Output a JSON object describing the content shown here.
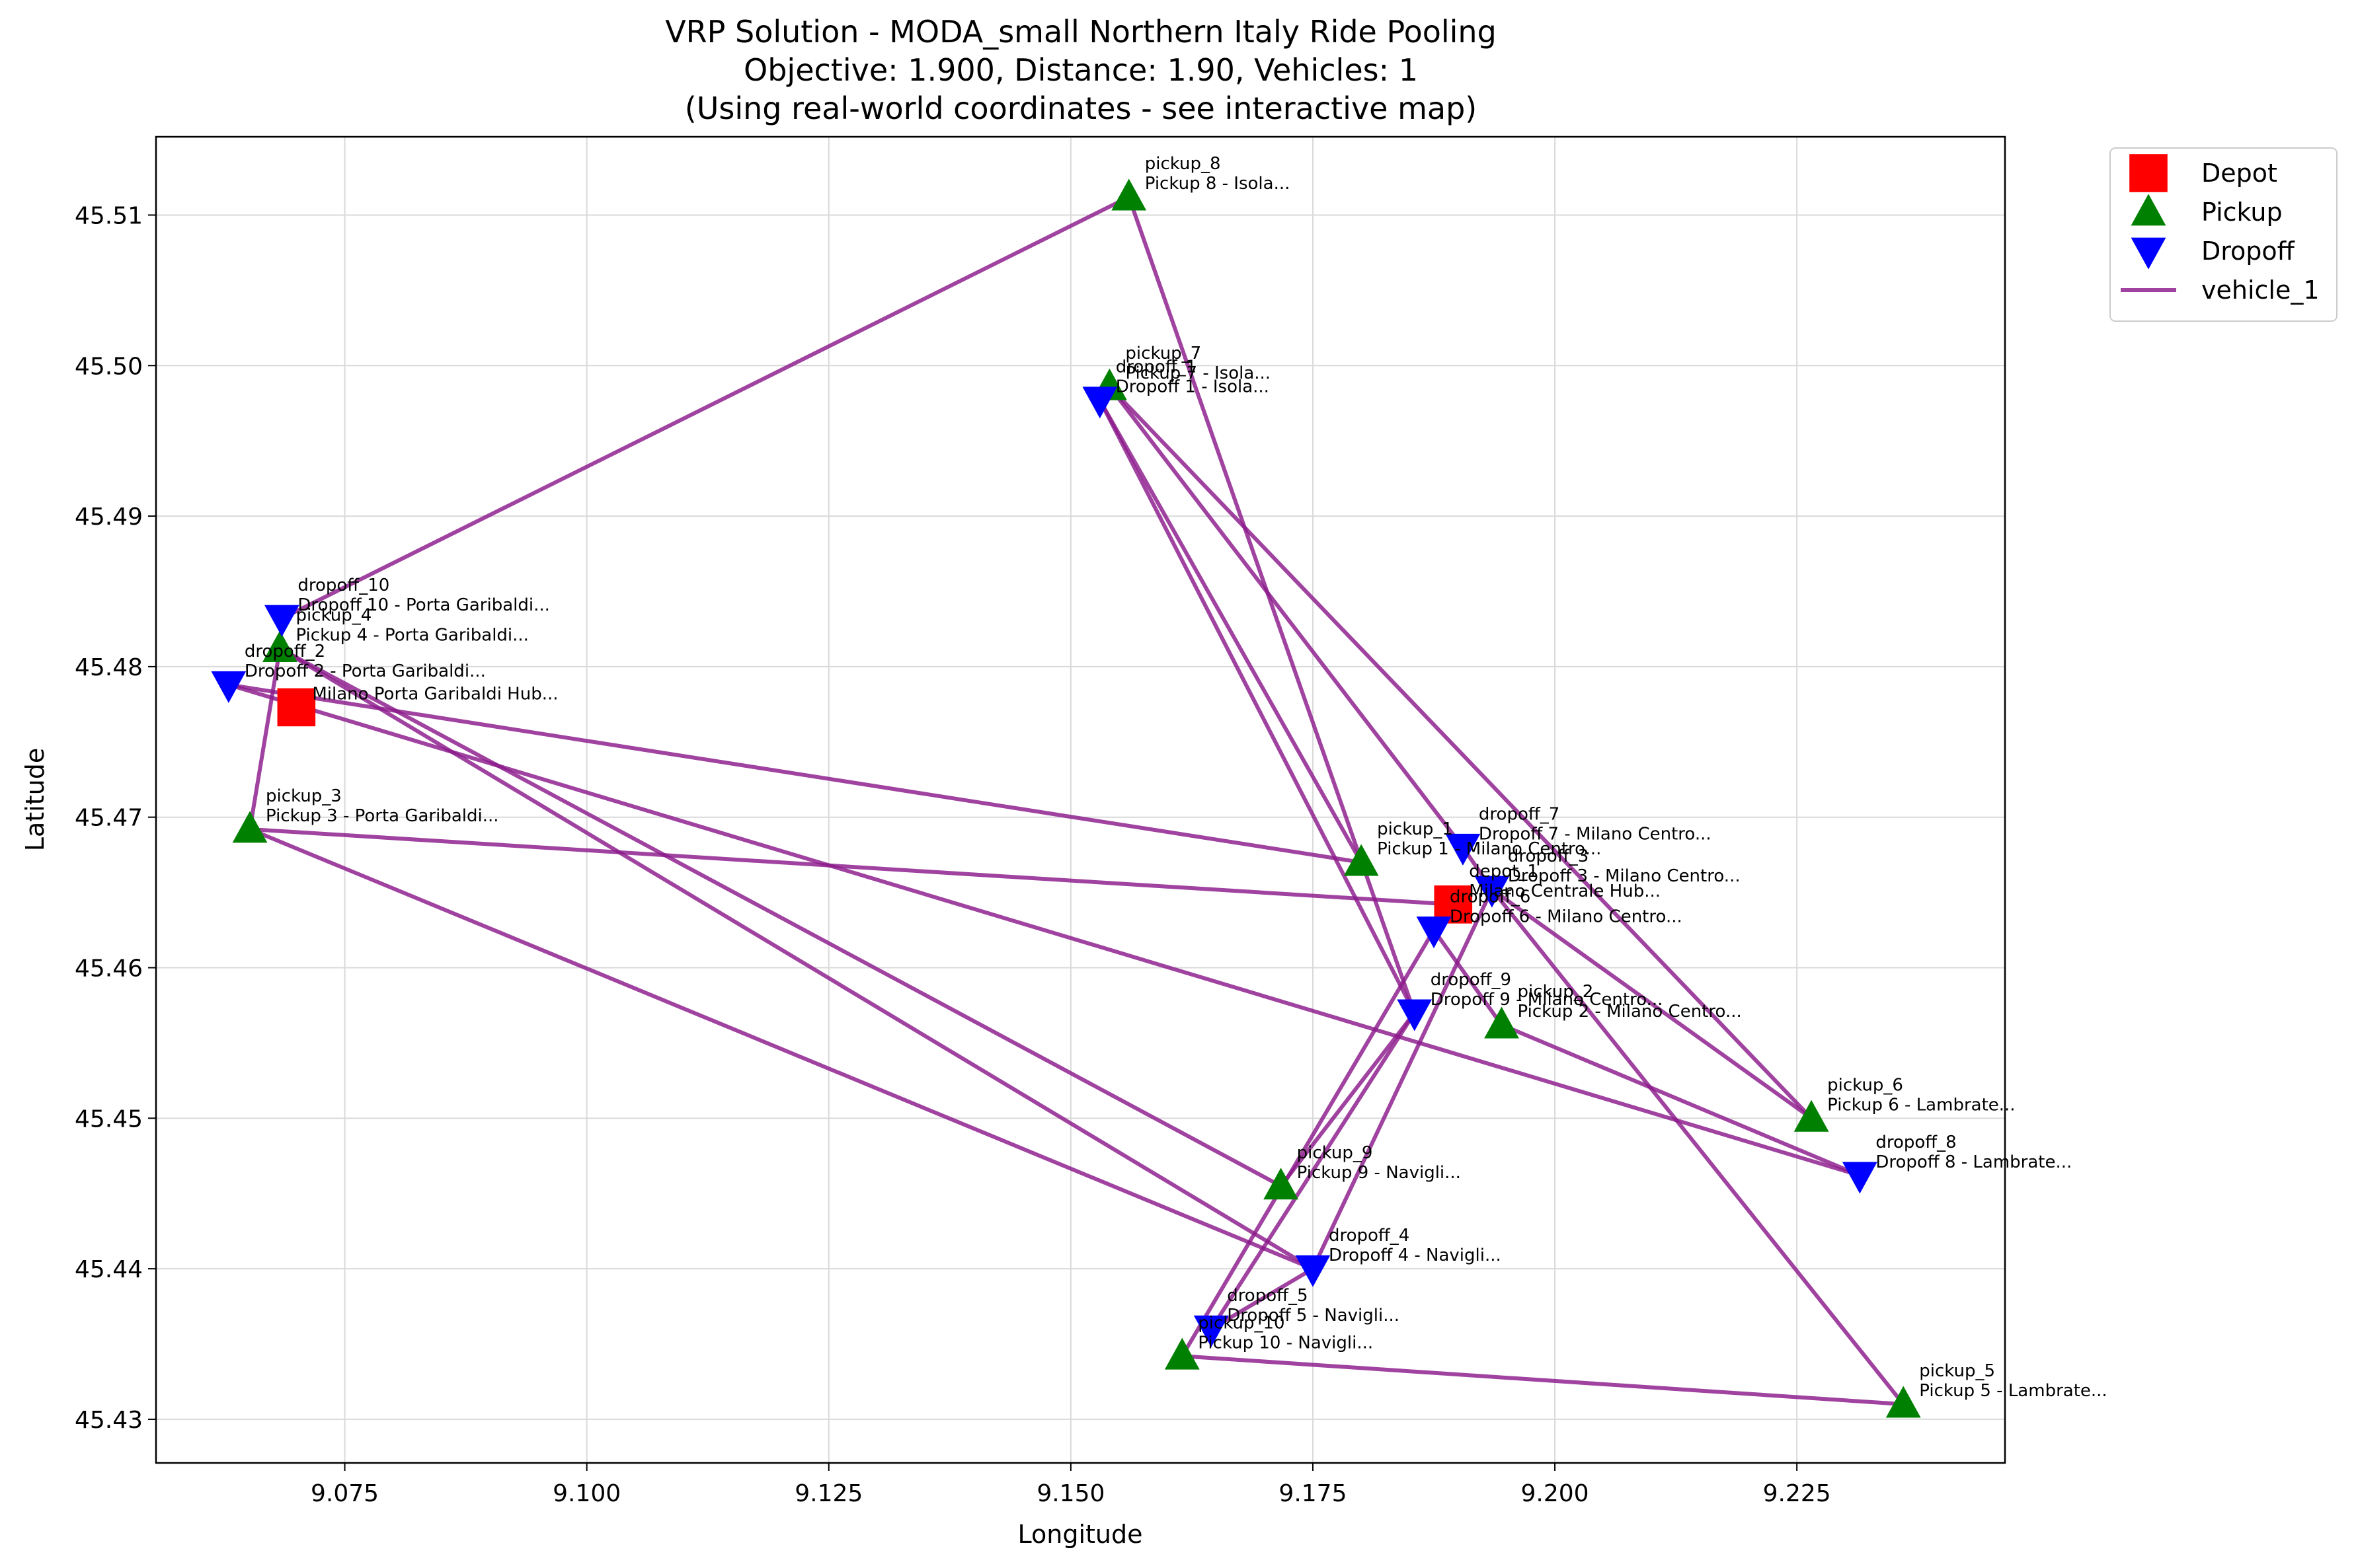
{
  "chart_data": {
    "type": "scatter",
    "title_lines": [
      "VRP Solution - MODA_small Northern Italy Ride Pooling",
      "Objective: 1.900, Distance: 1.90, Vehicles: 1",
      "(Using real-world coordinates - see interactive map)"
    ],
    "xlabel": "Longitude",
    "ylabel": "Latitude",
    "xlim": [
      9.0555,
      9.2465
    ],
    "ylim": [
      45.4271,
      45.5152
    ],
    "xticks": [
      "9.075",
      "9.100",
      "9.125",
      "9.150",
      "9.175",
      "9.200",
      "9.225"
    ],
    "yticks": [
      "45.43",
      "45.44",
      "45.45",
      "45.46",
      "45.47",
      "45.48",
      "45.49",
      "45.50",
      "45.51"
    ],
    "grid": true,
    "legend_position": "outside upper right",
    "legend": [
      {
        "label": "Depot",
        "marker": "square",
        "color": "#ff0000"
      },
      {
        "label": "Pickup",
        "marker": "triangle-up",
        "color": "#008000"
      },
      {
        "label": "Dropoff",
        "marker": "triangle-down",
        "color": "#0000ff"
      },
      {
        "label": "vehicle_1",
        "marker": "line",
        "color": "#8b1a8b"
      }
    ],
    "points": [
      {
        "id": "depot_1",
        "kind": "depot",
        "x": 9.07,
        "y": 45.4773,
        "name": "",
        "desc": "Milano Porta Garibaldi Hub..."
      },
      {
        "id": "depot_2",
        "kind": "depot",
        "x": 9.1895,
        "y": 45.4642,
        "name": "depot_1",
        "desc": "Milano Centrale Hub..."
      },
      {
        "id": "pickup_1",
        "kind": "pickup",
        "x": 9.18,
        "y": 45.467,
        "name": "pickup_1",
        "desc": "Pickup 1 - Milano Centro..."
      },
      {
        "id": "pickup_2",
        "kind": "pickup",
        "x": 9.1945,
        "y": 45.4562,
        "name": "pickup_2",
        "desc": "Pickup 2 - Milano Centro..."
      },
      {
        "id": "pickup_3",
        "kind": "pickup",
        "x": 9.0652,
        "y": 45.4692,
        "name": "pickup_3",
        "desc": "Pickup 3 - Porta Garibaldi..."
      },
      {
        "id": "pickup_4",
        "kind": "pickup",
        "x": 9.0683,
        "y": 45.4812,
        "name": "pickup_4",
        "desc": "Pickup 4 - Porta Garibaldi..."
      },
      {
        "id": "pickup_5",
        "kind": "pickup",
        "x": 9.236,
        "y": 45.431,
        "name": "pickup_5",
        "desc": "Pickup 5 - Lambrate..."
      },
      {
        "id": "pickup_6",
        "kind": "pickup",
        "x": 9.2265,
        "y": 45.45,
        "name": "pickup_6",
        "desc": "Pickup 6 - Lambrate..."
      },
      {
        "id": "pickup_7",
        "kind": "pickup",
        "x": 9.154,
        "y": 45.4986,
        "name": "pickup_7",
        "desc": "Pickup 7 - Isola..."
      },
      {
        "id": "pickup_8",
        "kind": "pickup",
        "x": 9.156,
        "y": 45.5112,
        "name": "pickup_8",
        "desc": "Pickup 8 - Isola..."
      },
      {
        "id": "pickup_9",
        "kind": "pickup",
        "x": 9.1717,
        "y": 45.4455,
        "name": "pickup_9",
        "desc": "Pickup 9 - Navigli..."
      },
      {
        "id": "pickup_10",
        "kind": "pickup",
        "x": 9.1615,
        "y": 45.4342,
        "name": "pickup_10",
        "desc": "Pickup 10 - Navigli..."
      },
      {
        "id": "dropoff_1",
        "kind": "dropoff",
        "x": 9.153,
        "y": 45.4977,
        "name": "dropoff_1",
        "desc": "Dropoff 1 - Isola..."
      },
      {
        "id": "dropoff_2",
        "kind": "dropoff",
        "x": 9.063,
        "y": 45.4788,
        "name": "dropoff_2",
        "desc": "Dropoff 2 - Porta Garibaldi..."
      },
      {
        "id": "dropoff_3",
        "kind": "dropoff",
        "x": 9.1935,
        "y": 45.4652,
        "name": "dropoff_3",
        "desc": "Dropoff 3 - Milano Centro..."
      },
      {
        "id": "dropoff_4",
        "kind": "dropoff",
        "x": 9.175,
        "y": 45.44,
        "name": "dropoff_4",
        "desc": "Dropoff 4 - Navigli..."
      },
      {
        "id": "dropoff_5",
        "kind": "dropoff",
        "x": 9.1645,
        "y": 45.436,
        "name": "dropoff_5",
        "desc": "Dropoff 5 - Navigli..."
      },
      {
        "id": "dropoff_6",
        "kind": "dropoff",
        "x": 9.1875,
        "y": 45.4625,
        "name": "dropoff_6",
        "desc": "Dropoff 6 - Milano Centro..."
      },
      {
        "id": "dropoff_7",
        "kind": "dropoff",
        "x": 9.1905,
        "y": 45.468,
        "name": "dropoff_7",
        "desc": "Dropoff 7 - Milano Centro..."
      },
      {
        "id": "dropoff_8",
        "kind": "dropoff",
        "x": 9.2315,
        "y": 45.4462,
        "name": "dropoff_8",
        "desc": "Dropoff 8 - Lambrate..."
      },
      {
        "id": "dropoff_9",
        "kind": "dropoff",
        "x": 9.1855,
        "y": 45.457,
        "name": "dropoff_9",
        "desc": "Dropoff 9 - Milano Centro..."
      },
      {
        "id": "dropoff_10",
        "kind": "dropoff",
        "x": 9.0685,
        "y": 45.4832,
        "name": "dropoff_10",
        "desc": "Dropoff 10 - Porta Garibaldi..."
      }
    ],
    "route": {
      "name": "vehicle_1",
      "color": "#8b1a8b",
      "stops": [
        "depot_2",
        "pickup_3",
        "pickup_4",
        "pickup_9",
        "dropoff_9",
        "dropoff_1",
        "pickup_1",
        "dropoff_2",
        "dropoff_8",
        "pickup_2",
        "dropoff_6",
        "pickup_10",
        "pickup_5",
        "dropoff_3",
        "pickup_6",
        "pickup_7",
        "dropoff_7",
        "dropoff_3",
        "dropoff_4",
        "pickup_4",
        "dropoff_10",
        "pickup_8",
        "dropoff_9",
        "dropoff_5",
        "dropoff_4",
        "pickup_3"
      ]
    }
  }
}
